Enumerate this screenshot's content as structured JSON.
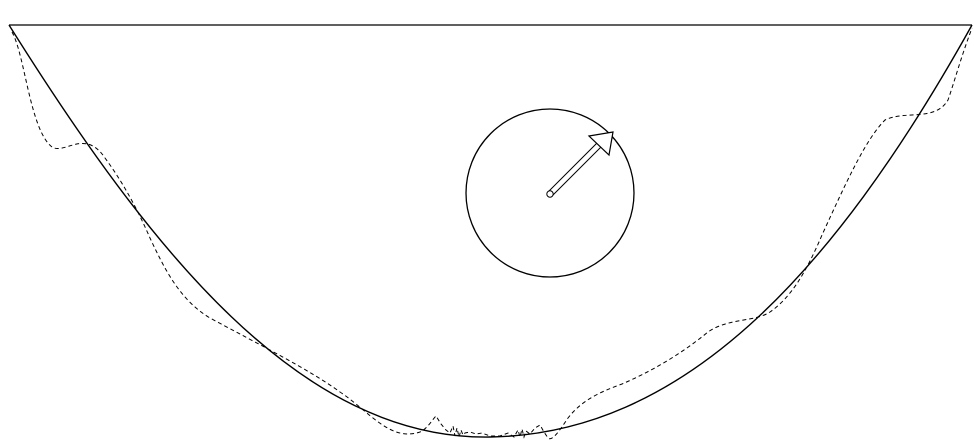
{
  "diagram": {
    "background_color": "#ffffff",
    "line_color": "#000000",
    "elements": [
      {
        "name": "top-edge-line",
        "style": "solid"
      },
      {
        "name": "bowl-curve",
        "style": "solid"
      },
      {
        "name": "perturbed-curve",
        "style": "dashed"
      },
      {
        "name": "wheel-circle",
        "style": "solid"
      },
      {
        "name": "direction-arrow",
        "style": "outline"
      }
    ]
  }
}
